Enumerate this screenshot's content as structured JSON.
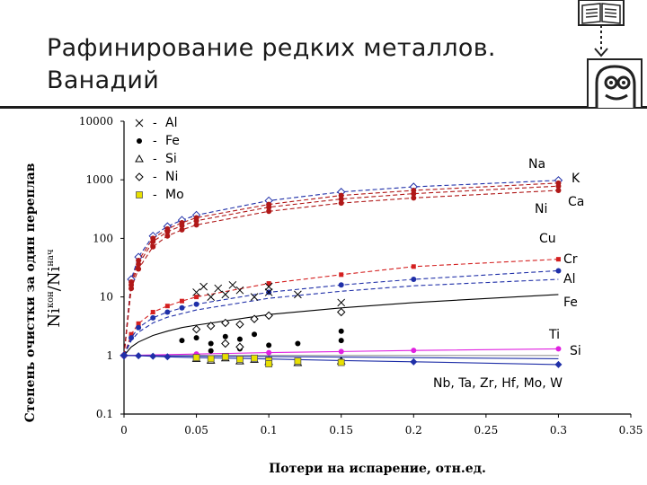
{
  "slide": {
    "title_line1": "Рафинирование редких металлов.",
    "title_line2": "Ванадий"
  },
  "colors": {
    "red": "#d42020",
    "dark_red": "#b01818",
    "blue": "#1f2fa8",
    "black": "#000000",
    "magenta": "#e020e0",
    "yellow": "#e8e000",
    "gray": "#7a7a7a"
  },
  "chart_data": {
    "type": "scatter",
    "xlabel": "Потери на испарение, отн.ед.",
    "ylabel": "Степень очистки за один переплав",
    "ylabel_formula": "Ni^кон/Ni^нач",
    "ylabel_formula_base1": "Ni",
    "ylabel_formula_sup1": "кон",
    "ylabel_formula_sep": "/Ni",
    "ylabel_formula_sup2": "нач",
    "y_scale": "log",
    "xlim": [
      0,
      0.35
    ],
    "ylim": [
      0.1,
      10000
    ],
    "x_ticks": [
      0,
      0.05,
      0.1,
      0.15,
      0.2,
      0.25,
      0.3,
      0.35
    ],
    "x_tick_labels": [
      "0",
      "0.05",
      "0.1",
      "0.15",
      "0.2",
      "0.25",
      "0.3",
      "0.35"
    ],
    "y_ticks": [
      0.1,
      1,
      10,
      100,
      1000,
      10000
    ],
    "y_tick_labels": [
      "0.1",
      "1",
      "10",
      "100",
      "1000",
      "10000"
    ],
    "legend": [
      {
        "symbol": "x-mark",
        "label": "Al"
      },
      {
        "symbol": "dot",
        "label": "Fe"
      },
      {
        "symbol": "triangle",
        "label": "Si"
      },
      {
        "symbol": "diamond",
        "label": "Ni"
      },
      {
        "symbol": "yellow-square",
        "label": "Mo"
      }
    ],
    "legend_dash": "-",
    "legend_position": "top-left",
    "curves": [
      {
        "label": "Na",
        "style": "dashed",
        "color": "#1f2fa8",
        "marker": "diamond-open",
        "x": [
          0,
          0.005,
          0.01,
          0.02,
          0.03,
          0.04,
          0.05,
          0.1,
          0.15,
          0.2,
          0.3
        ],
        "y": [
          1,
          20,
          48,
          110,
          160,
          205,
          250,
          440,
          620,
          760,
          980
        ]
      },
      {
        "label": "K",
        "style": "dashed",
        "color": "#b01818",
        "marker": "dot",
        "x": [
          0,
          0.005,
          0.01,
          0.02,
          0.03,
          0.04,
          0.05,
          0.1,
          0.15,
          0.2,
          0.3
        ],
        "y": [
          1,
          18,
          42,
          100,
          145,
          185,
          225,
          380,
          540,
          660,
          880
        ]
      },
      {
        "label": "Ni",
        "style": "dashed",
        "color": "#b01818",
        "marker": "dot",
        "x": [
          0,
          0.005,
          0.01,
          0.02,
          0.03,
          0.04,
          0.05,
          0.1,
          0.15,
          0.2,
          0.3
        ],
        "y": [
          1,
          16,
          36,
          88,
          130,
          165,
          200,
          340,
          470,
          580,
          780
        ]
      },
      {
        "label": "Ca",
        "style": "dashed",
        "color": "#b01818",
        "marker": "dot",
        "x": [
          0,
          0.005,
          0.01,
          0.02,
          0.03,
          0.04,
          0.05,
          0.1,
          0.15,
          0.2,
          0.3
        ],
        "y": [
          1,
          14,
          30,
          72,
          110,
          140,
          170,
          290,
          400,
          490,
          660
        ]
      },
      {
        "label": "Cu",
        "style": "dashed",
        "color": "#d42020",
        "marker": "square",
        "x": [
          0,
          0.005,
          0.01,
          0.02,
          0.03,
          0.04,
          0.05,
          0.1,
          0.15,
          0.2,
          0.3
        ],
        "y": [
          1,
          2.3,
          3.5,
          5.5,
          7,
          8.5,
          10,
          17,
          24,
          33,
          44
        ]
      },
      {
        "label": "Cr",
        "style": "dashed",
        "color": "#1f2fa8",
        "marker": "dot",
        "x": [
          0,
          0.005,
          0.01,
          0.02,
          0.03,
          0.04,
          0.05,
          0.1,
          0.15,
          0.2,
          0.3
        ],
        "y": [
          1,
          2,
          3,
          4.4,
          5.5,
          6.5,
          7.5,
          12,
          16,
          20,
          28
        ]
      },
      {
        "label": "Al",
        "style": "dashed",
        "color": "#1f2fa8",
        "marker": "none",
        "x": [
          0,
          0.005,
          0.01,
          0.02,
          0.03,
          0.04,
          0.05,
          0.1,
          0.15,
          0.2,
          0.3
        ],
        "y": [
          1,
          1.8,
          2.5,
          3.6,
          4.5,
          5.2,
          6,
          9.5,
          12.5,
          15.5,
          20
        ]
      },
      {
        "label": "Fe",
        "style": "solid",
        "color": "#000000",
        "marker": "none",
        "x": [
          0,
          0.005,
          0.01,
          0.02,
          0.03,
          0.04,
          0.05,
          0.1,
          0.15,
          0.2,
          0.3
        ],
        "y": [
          1,
          1.4,
          1.7,
          2.2,
          2.6,
          3,
          3.3,
          5,
          6.5,
          8,
          11
        ]
      },
      {
        "label": "Ti",
        "style": "solid",
        "color": "#e020e0",
        "marker": "dot",
        "x": [
          0,
          0.05,
          0.1,
          0.15,
          0.2,
          0.3
        ],
        "y": [
          1,
          1.06,
          1.12,
          1.17,
          1.22,
          1.3
        ]
      },
      {
        "label": "Si",
        "style": "solid",
        "color": "#1f2fa8",
        "marker": "none",
        "x": [
          0,
          0.05,
          0.1,
          0.15,
          0.2,
          0.3
        ],
        "y": [
          1,
          0.98,
          0.96,
          0.94,
          0.92,
          0.88
        ]
      },
      {
        "label": "Nb, Ta, Zr, Hf, Mo, W",
        "style": "solid",
        "color": "#1f2fa8",
        "marker": "diamond-filled",
        "x": [
          0,
          0.01,
          0.02,
          0.03,
          0.05,
          0.1,
          0.15,
          0.2,
          0.3
        ],
        "y": [
          1,
          0.99,
          0.97,
          0.95,
          0.92,
          0.87,
          0.82,
          0.78,
          0.7
        ]
      }
    ],
    "scatter_points": [
      {
        "series": "Al",
        "marker": "x-mark",
        "x": [
          0.05,
          0.055,
          0.06,
          0.065,
          0.07,
          0.075,
          0.08,
          0.09,
          0.1,
          0.1,
          0.12,
          0.15
        ],
        "y": [
          12,
          15,
          10,
          14,
          11,
          16,
          13,
          10,
          15,
          12,
          11,
          8
        ]
      },
      {
        "series": "Fe",
        "marker": "dot",
        "x": [
          0.04,
          0.05,
          0.06,
          0.07,
          0.08,
          0.09,
          0.1,
          0.12,
          0.15,
          0.15,
          0.06,
          0.08
        ],
        "y": [
          1.8,
          2,
          1.6,
          2.1,
          1.9,
          2.3,
          1.5,
          1.6,
          1.8,
          2.6,
          1.2,
          1.3
        ]
      },
      {
        "series": "Si",
        "marker": "triangle",
        "x": [
          0.05,
          0.06,
          0.07,
          0.08,
          0.09,
          0.1,
          0.12,
          0.15
        ],
        "y": [
          0.88,
          0.82,
          0.9,
          0.8,
          0.85,
          0.78,
          0.75,
          0.8
        ]
      },
      {
        "series": "Ni",
        "marker": "diamond",
        "x": [
          0.05,
          0.06,
          0.07,
          0.08,
          0.09,
          0.1,
          0.15,
          0.07,
          0.08
        ],
        "y": [
          2.8,
          3.2,
          3.6,
          3.4,
          4.2,
          4.8,
          5.5,
          1.6,
          1.4
        ]
      },
      {
        "series": "Mo",
        "marker": "yellow-square",
        "x": [
          0.05,
          0.06,
          0.07,
          0.08,
          0.09,
          0.1,
          0.12,
          0.15,
          0.1
        ],
        "y": [
          0.92,
          0.88,
          0.95,
          0.86,
          0.9,
          0.82,
          0.8,
          0.76,
          0.72
        ]
      }
    ],
    "annotations": [
      "Na",
      "K",
      "Ni",
      "Ca",
      "Cu",
      "Cr",
      "Al",
      "Fe",
      "Ti",
      "Si",
      "Nb, Ta, Zr, Hf, Mo, W"
    ]
  }
}
